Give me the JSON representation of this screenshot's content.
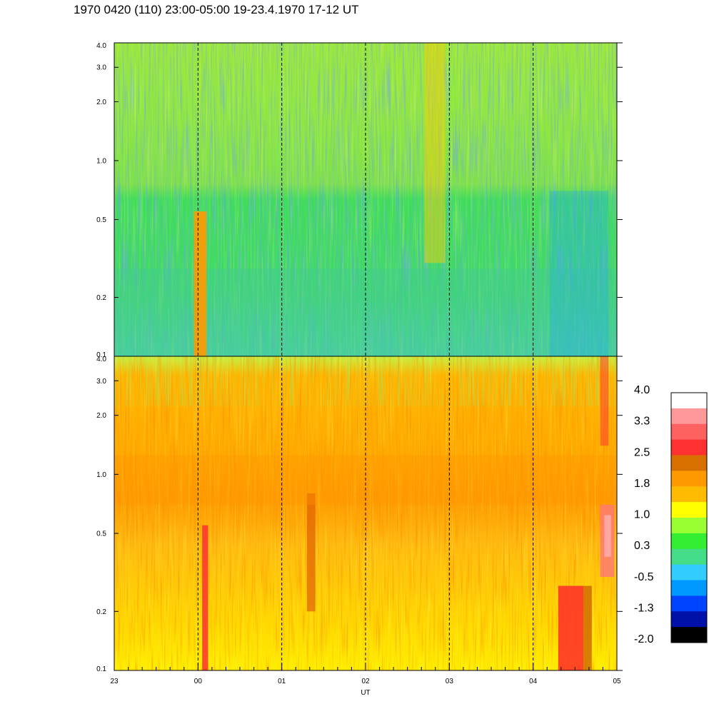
{
  "title": "1970 0420 (110) 23:00-05:00 19-23.4.1970  17-12 UT",
  "chart_data": {
    "type": "heatmap",
    "title": "1970 0420 (110) 23:00-05:00 19-23.4.1970  17-12 UT",
    "xlabel": "UT",
    "x_tick_labels": [
      "23",
      "00",
      "01",
      "02",
      "03",
      "04",
      "05"
    ],
    "xlim_hours_ut": [
      23,
      29
    ],
    "y_scale": "log",
    "ylim": [
      0.1,
      4.0
    ],
    "y_tick_labels": [
      "4.0",
      "3.0",
      "2.0",
      "1.0",
      "0.5",
      "0.2",
      "0.1"
    ],
    "y_tick_values": [
      4.0,
      3.0,
      2.0,
      1.0,
      0.5,
      0.2,
      0.1
    ],
    "panels": [
      {
        "name": "upper",
        "dominant_levels": "green to light-blue (about -0.5 to 1.0)",
        "features": [
          "orange column near 00 UT below 0.5",
          "yellow/orange streaks near 02:50 UT"
        ]
      },
      {
        "name": "lower",
        "dominant_levels": "orange to yellow (about 1.0 to 2.5)",
        "features": [
          "red column near 00 UT below 0.5",
          "red block near 04:25 UT below 0.27",
          "pink patch near 04:50 UT between 0.3 and 0.7"
        ]
      }
    ],
    "colorbar": {
      "labels": [
        "4.0",
        "3.3",
        "2.5",
        "1.8",
        "1.0",
        "0.3",
        "-0.5",
        "-1.3",
        "-2.0"
      ],
      "colors": [
        "#ffffff",
        "#ff9999",
        "#ff6060",
        "#ff3030",
        "#d87000",
        "#ff9900",
        "#ffbb00",
        "#ffff00",
        "#99ff33",
        "#33ee33",
        "#44dd88",
        "#33ccff",
        "#0099ff",
        "#0044ff",
        "#0011aa",
        "#000000"
      ]
    }
  }
}
